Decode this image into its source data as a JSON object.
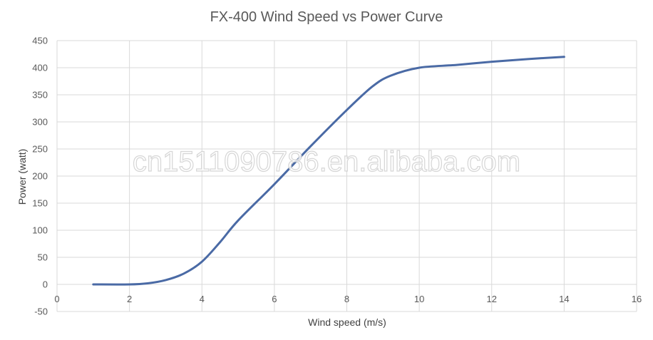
{
  "chart_data": {
    "type": "line",
    "title": "FX-400 Wind Speed vs Power Curve",
    "xlabel": "Wind speed (m/s)",
    "ylabel": "Power (watt)",
    "xlim": [
      0,
      16
    ],
    "ylim": [
      -50,
      450
    ],
    "xticks": [
      0,
      2,
      4,
      6,
      8,
      10,
      12,
      14,
      16
    ],
    "yticks": [
      -50,
      0,
      50,
      100,
      150,
      200,
      250,
      300,
      350,
      400,
      450
    ],
    "grid": true,
    "legend": "none",
    "series": [
      {
        "color": "#4a6aa5",
        "x": [
          1,
          2,
          2.5,
          3,
          3.5,
          4,
          4.5,
          5,
          6,
          7,
          8,
          8.7,
          9.2,
          10,
          11,
          12,
          13,
          14
        ],
        "y": [
          0,
          0,
          2,
          8,
          20,
          42,
          78,
          118,
          185,
          255,
          322,
          365,
          385,
          400,
          405,
          411,
          416,
          420
        ]
      }
    ]
  },
  "watermark": "cn1511090786.en.alibaba.com"
}
